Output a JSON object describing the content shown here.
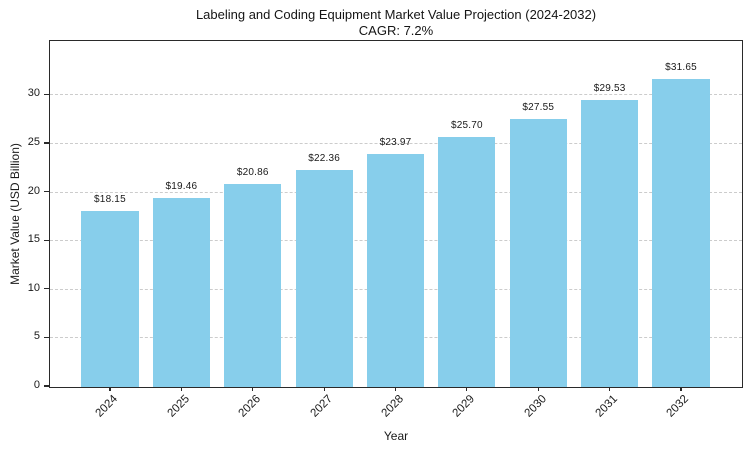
{
  "chart_data": {
    "type": "bar",
    "title": "Labeling and Coding Equipment Market Value Projection (2024-2032)",
    "subtitle": "CAGR: 7.2%",
    "xlabel": "Year",
    "ylabel": "Market Value (USD Billion)",
    "categories": [
      "2024",
      "2025",
      "2026",
      "2027",
      "2028",
      "2029",
      "2030",
      "2031",
      "2032"
    ],
    "values": [
      18.15,
      19.46,
      20.86,
      22.36,
      23.97,
      25.7,
      27.55,
      29.53,
      31.65
    ],
    "bar_labels": [
      "$18.15",
      "$19.46",
      "$20.86",
      "$22.36",
      "$23.97",
      "$25.70",
      "$27.55",
      "$29.53",
      "$31.65"
    ],
    "yticks": [
      0,
      5,
      10,
      15,
      20,
      25,
      30
    ],
    "ylim": [
      0,
      35.5
    ],
    "bar_color": "#87CEEB",
    "grid": {
      "axis": "y",
      "style": "dashed",
      "color": "#cccccc"
    },
    "legend": "none"
  }
}
